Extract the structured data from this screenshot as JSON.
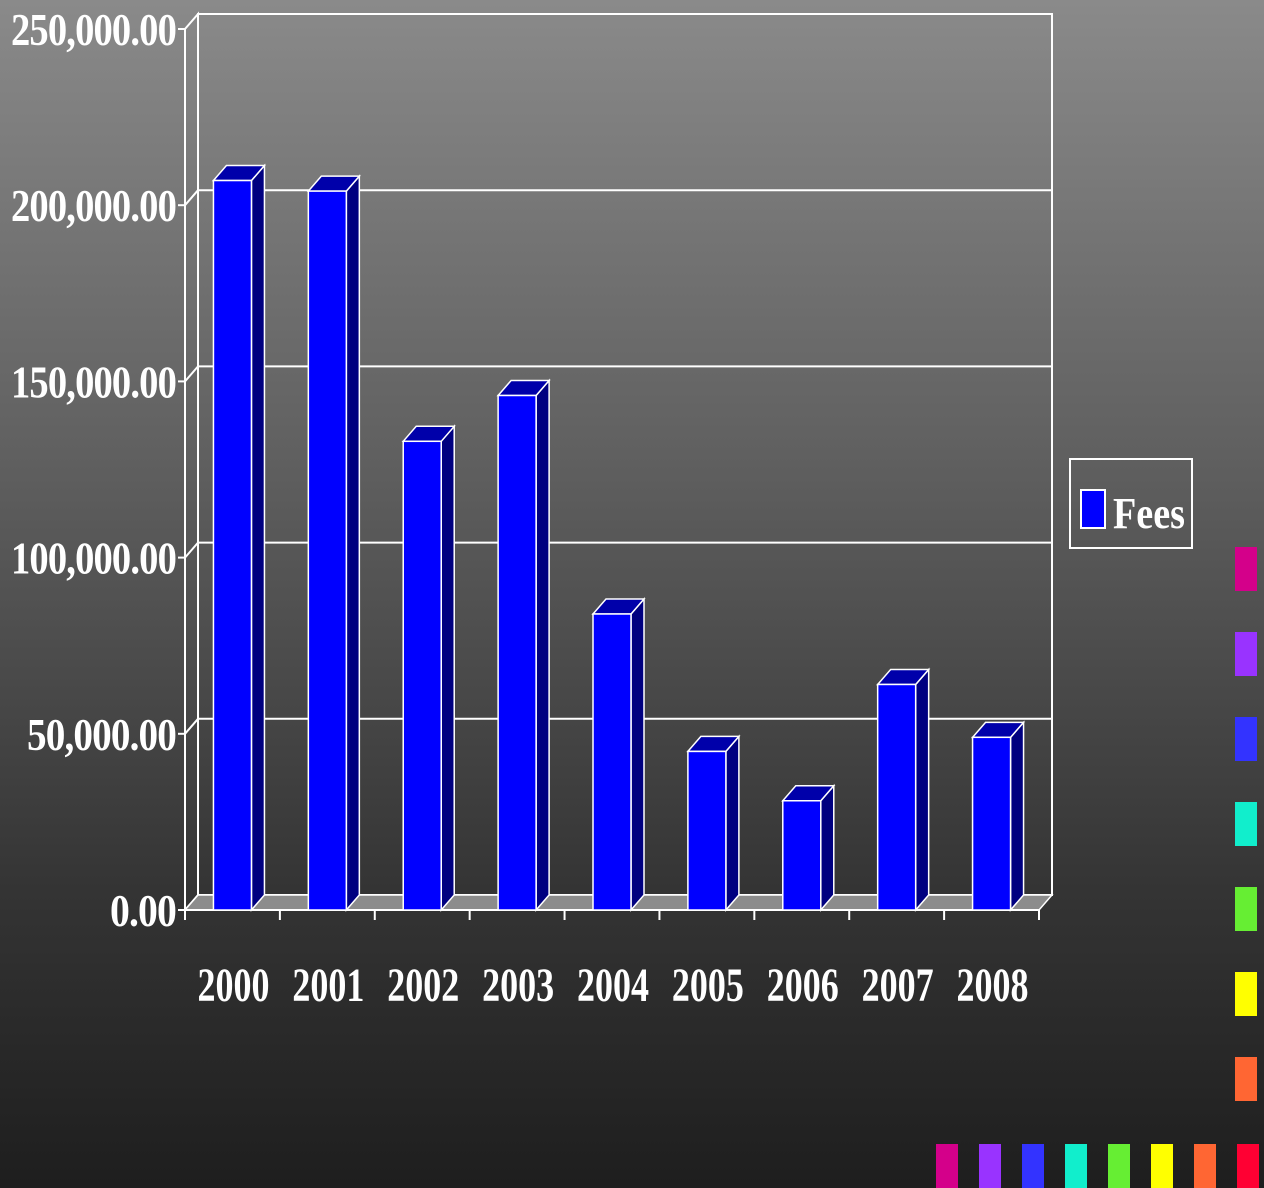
{
  "chart_data": {
    "type": "bar",
    "style": "3d-column",
    "categories": [
      "2000",
      "2001",
      "2002",
      "2003",
      "2004",
      "2005",
      "2006",
      "2007",
      "2008"
    ],
    "series": [
      {
        "name": "Fees",
        "values": [
          207000,
          204000,
          133000,
          146000,
          84000,
          45000,
          31000,
          64000,
          49000
        ],
        "color": "#0000ff",
        "side_color": "#000080",
        "top_color": "#0000aa"
      }
    ],
    "ylim": [
      0,
      250000
    ],
    "yticks": [
      0,
      50000,
      100000,
      150000,
      200000,
      250000
    ],
    "ytick_labels": [
      "0.00",
      "50,000.00",
      "100,000.00",
      "150,000.00",
      "200,000.00",
      "250,000.00"
    ],
    "grid": true,
    "legend": {
      "position": "right",
      "entries": [
        "Fees"
      ]
    },
    "title": "",
    "xlabel": "",
    "ylabel": ""
  },
  "decoration": {
    "vertical_squares": [
      "#d4008a",
      "#9933ff",
      "#3333ff",
      "#11eecc",
      "#66ee33",
      "#ffff00",
      "#ff6633"
    ],
    "horizontal_squares": [
      "#d4008a",
      "#9933ff",
      "#3333ff",
      "#11eecc",
      "#66ee33",
      "#ffff00",
      "#ff6633",
      "#ff0033"
    ]
  }
}
